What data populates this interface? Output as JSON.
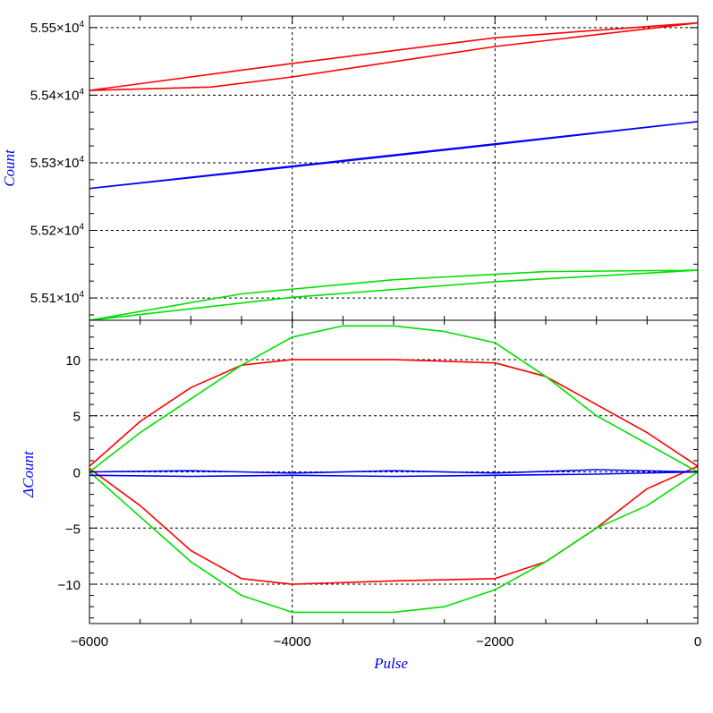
{
  "chart_data": [
    {
      "panel": "top",
      "type": "line",
      "ylabel": "Count",
      "xlim": [
        -6000,
        0
      ],
      "ylim": [
        55067,
        55517
      ],
      "grid": true,
      "x_ticks": [
        -6000,
        -4000,
        -2000,
        0
      ],
      "y_ticks": [
        {
          "value": 55100,
          "label": "5.51×10",
          "exp": "4"
        },
        {
          "value": 55200,
          "label": "5.52×10",
          "exp": "4"
        },
        {
          "value": 55300,
          "label": "5.53×10",
          "exp": "4"
        },
        {
          "value": 55400,
          "label": "5.54×10",
          "exp": "4"
        },
        {
          "value": 55500,
          "label": "5.55×10",
          "exp": "4"
        }
      ],
      "series": [
        {
          "color": "#ff0000",
          "x": [
            -6000,
            -4000,
            -2000,
            0,
            -2000,
            -4000,
            -4800,
            -6000
          ],
          "y": [
            55407,
            55447,
            55485,
            55507,
            55472,
            55427,
            55412,
            55407
          ]
        },
        {
          "color": "#0000ff",
          "x": [
            -6000,
            -4000,
            -2000,
            0,
            -2000,
            -4000,
            -6000
          ],
          "y": [
            55262,
            55294,
            55327,
            55361,
            55328,
            55295,
            55262
          ]
        },
        {
          "color": "#00e000",
          "x": [
            -6000,
            -4000,
            -2000,
            0,
            -1500,
            -3000,
            -4500,
            -6000
          ],
          "y": [
            55067,
            55101,
            55124,
            55141,
            55139,
            55127,
            55106,
            55067
          ]
        }
      ]
    },
    {
      "panel": "bottom",
      "type": "line",
      "xlabel": "Pulse",
      "ylabel": "ΔCount",
      "xlim": [
        -6000,
        0
      ],
      "ylim": [
        -13.5,
        13.5
      ],
      "grid": true,
      "x_ticks": [
        -6000,
        -4000,
        -2000,
        0
      ],
      "y_ticks": [
        -10,
        -5,
        0,
        5,
        10
      ],
      "series": [
        {
          "color": "#ff0000",
          "x": [
            -6000,
            -5500,
            -5000,
            -4500,
            -4000,
            -3000,
            -2000,
            -1500,
            -1000,
            -500,
            0,
            -500,
            -1000,
            -1500,
            -2000,
            -3000,
            -4000,
            -4500,
            -5000,
            -5500,
            -6000
          ],
          "y": [
            0.5,
            4.5,
            7.5,
            9.5,
            10,
            10,
            9.7,
            8.5,
            6,
            3.5,
            0.5,
            -1.5,
            -5,
            -8,
            -9.5,
            -9.7,
            -10,
            -9.5,
            -7,
            -3,
            0.3
          ]
        },
        {
          "color": "#00e000",
          "x": [
            -6000,
            -5500,
            -5000,
            -4500,
            -4000,
            -3500,
            -3000,
            -2500,
            -2000,
            -1500,
            -1000,
            -500,
            0,
            -500,
            -1000,
            -1500,
            -2000,
            -2500,
            -3000,
            -3500,
            -4000,
            -4500,
            -5000,
            -5500,
            -6000
          ],
          "y": [
            0,
            3.5,
            6.5,
            9.5,
            12,
            13,
            13,
            12.5,
            11.5,
            8.5,
            5,
            2.5,
            0,
            -3,
            -5,
            -8,
            -10.5,
            -12,
            -12.5,
            -12.5,
            -12.5,
            -11,
            -8,
            -4,
            0
          ]
        },
        {
          "color": "#0000ff",
          "x": [
            -6000,
            -5000,
            -4000,
            -3000,
            -2000,
            -1000,
            0,
            -1000,
            -2000,
            -3000,
            -4000,
            -5000,
            -6000
          ],
          "y": [
            0,
            0.1,
            -0.1,
            0.1,
            -0.1,
            0.2,
            0,
            -0.2,
            -0.3,
            -0.4,
            -0.3,
            -0.4,
            -0.3
          ]
        }
      ]
    }
  ]
}
